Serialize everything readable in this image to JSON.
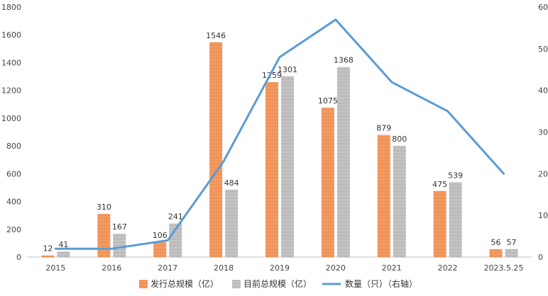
{
  "chart_data": {
    "type": "bar",
    "categories": [
      "2015",
      "2016",
      "2017",
      "2018",
      "2019",
      "2020",
      "2021",
      "2022",
      "2023.5.25"
    ],
    "series": [
      {
        "name": "发行总规模（亿）",
        "type": "bar",
        "axis": "left",
        "color": "#ED7D31",
        "values": [
          12,
          310,
          106,
          1546,
          1259,
          1075,
          879,
          475,
          56
        ]
      },
      {
        "name": "目前总规模（亿）",
        "type": "bar",
        "axis": "left",
        "color": "#A5A5A5",
        "values": [
          41,
          167,
          241,
          484,
          1301,
          1368,
          800,
          539,
          57
        ]
      },
      {
        "name": "数量（只）（右轴）",
        "type": "line",
        "axis": "right",
        "color": "#5B9BD5",
        "values": [
          2,
          2,
          4,
          23,
          48,
          57,
          42,
          35,
          20
        ]
      }
    ],
    "y_left": {
      "range": [
        0,
        1800
      ],
      "ticks": [
        0,
        200,
        400,
        600,
        800,
        1000,
        1200,
        1400,
        1600,
        1800
      ]
    },
    "y_right": {
      "range": [
        0,
        60
      ],
      "ticks": [
        0,
        10,
        20,
        30,
        40,
        50,
        60
      ]
    },
    "grid": false,
    "legend_position": "bottom"
  }
}
